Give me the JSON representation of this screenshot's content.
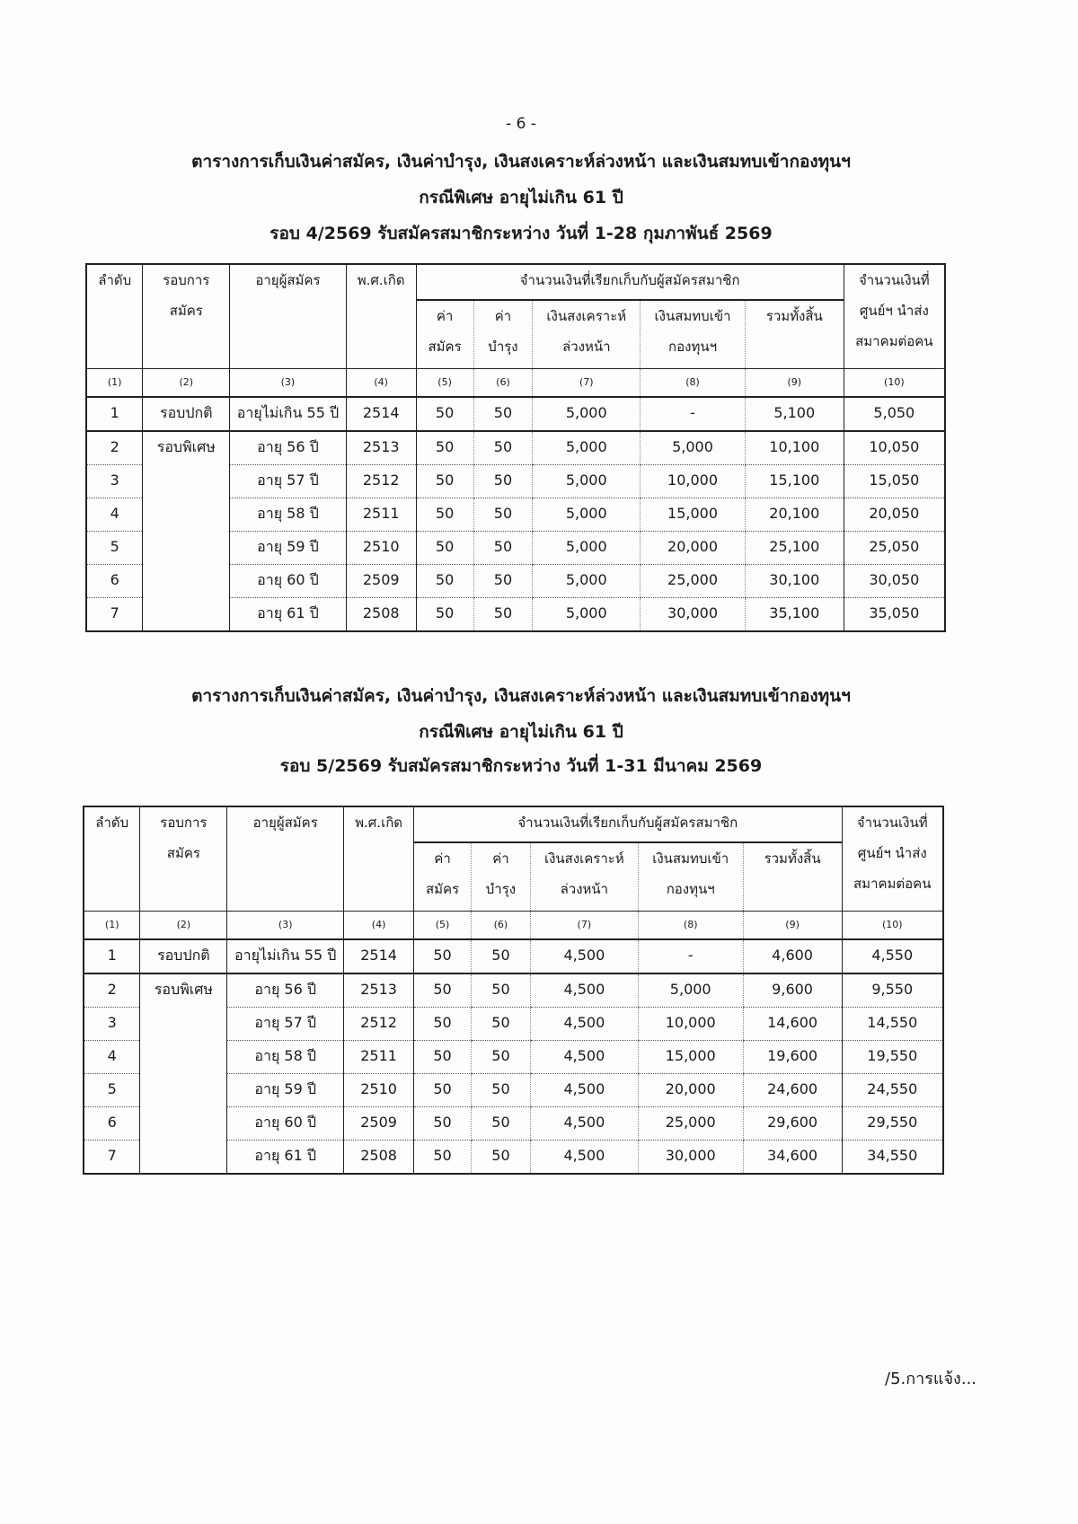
{
  "page_number": "- 6 -",
  "header_labels": {
    "c1": "ลำดับ",
    "c2a": "รอบการ",
    "c2b": "สมัคร",
    "c3": "อายุผู้สมัคร",
    "c4": "พ.ศ.เกิด",
    "group": "จำนวนเงินที่เรียกเก็บกับผู้สมัครสมาชิก",
    "c5a": "ค่า",
    "c5b": "สมัคร",
    "c6a": "ค่า",
    "c6b": "บำรุง",
    "c7a": "เงินสงเคราะห์",
    "c7b": "ล่วงหน้า",
    "c8a": "เงินสมทบเข้า",
    "c8b": "กองทุนฯ",
    "c9": "รวมทั้งสิ้น",
    "c10a": "จำนวนเงินที่",
    "c10b": "ศูนย์ฯ นำส่ง",
    "c10c": "สมาคมต่อคน",
    "index": [
      "(1)",
      "(2)",
      "(3)",
      "(4)",
      "(5)",
      "(6)",
      "(7)",
      "(8)",
      "(9)",
      "(10)"
    ]
  },
  "tables": [
    {
      "title1": "ตารางการเก็บเงินค่าสมัคร, เงินค่าบำรุง, เงินสงเคราะห์ล่วงหน้า และเงินสมทบเข้ากองทุนฯ",
      "title2": "กรณีพิเศษ อายุไม่เกิน 61 ปี",
      "title3": "รอบ 4/2569  รับสมัครสมาชิกระหว่าง วันที่ 1-28 กุมภาพันธ์ 2569",
      "rows": [
        [
          "1",
          "รอบปกติ",
          "อายุไม่เกิน 55 ปี",
          "2514",
          "50",
          "50",
          "5,000",
          "-",
          "5,100",
          "5,050"
        ],
        [
          "2",
          "รอบพิเศษ",
          "อายุ 56 ปี",
          "2513",
          "50",
          "50",
          "5,000",
          "5,000",
          "10,100",
          "10,050"
        ],
        [
          "3",
          "",
          "อายุ 57 ปี",
          "2512",
          "50",
          "50",
          "5,000",
          "10,000",
          "15,100",
          "15,050"
        ],
        [
          "4",
          "",
          "อายุ 58 ปี",
          "2511",
          "50",
          "50",
          "5,000",
          "15,000",
          "20,100",
          "20,050"
        ],
        [
          "5",
          "",
          "อายุ 59 ปี",
          "2510",
          "50",
          "50",
          "5,000",
          "20,000",
          "25,100",
          "25,050"
        ],
        [
          "6",
          "",
          "อายุ 60 ปี",
          "2509",
          "50",
          "50",
          "5,000",
          "25,000",
          "30,100",
          "30,050"
        ],
        [
          "7",
          "",
          "อายุ 61 ปี",
          "2508",
          "50",
          "50",
          "5,000",
          "30,000",
          "35,100",
          "35,050"
        ]
      ]
    },
    {
      "title1": "ตารางการเก็บเงินค่าสมัคร, เงินค่าบำรุง, เงินสงเคราะห์ล่วงหน้า และเงินสมทบเข้ากองทุนฯ",
      "title2": "กรณีพิเศษ อายุไม่เกิน 61 ปี",
      "title3": "รอบ 5/2569  รับสมัครสมาชิกระหว่าง  วันที่ 1-31 มีนาคม 2569",
      "rows": [
        [
          "1",
          "รอบปกติ",
          "อายุไม่เกิน 55 ปี",
          "2514",
          "50",
          "50",
          "4,500",
          "-",
          "4,600",
          "4,550"
        ],
        [
          "2",
          "รอบพิเศษ",
          "อายุ 56 ปี",
          "2513",
          "50",
          "50",
          "4,500",
          "5,000",
          "9,600",
          "9,550"
        ],
        [
          "3",
          "",
          "อายุ 57 ปี",
          "2512",
          "50",
          "50",
          "4,500",
          "10,000",
          "14,600",
          "14,550"
        ],
        [
          "4",
          "",
          "อายุ 58 ปี",
          "2511",
          "50",
          "50",
          "4,500",
          "15,000",
          "19,600",
          "19,550"
        ],
        [
          "5",
          "",
          "อายุ 59 ปี",
          "2510",
          "50",
          "50",
          "4,500",
          "20,000",
          "24,600",
          "24,550"
        ],
        [
          "6",
          "",
          "อายุ 60 ปี",
          "2509",
          "50",
          "50",
          "4,500",
          "25,000",
          "29,600",
          "29,550"
        ],
        [
          "7",
          "",
          "อายุ 61 ปี",
          "2508",
          "50",
          "50",
          "4,500",
          "30,000",
          "34,600",
          "34,550"
        ]
      ]
    }
  ],
  "footer": "/5.การแจ้ง..."
}
